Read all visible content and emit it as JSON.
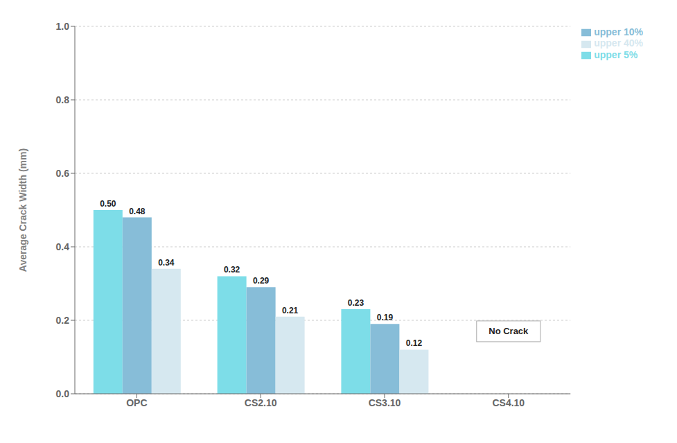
{
  "chart_data": {
    "type": "bar",
    "categories": [
      "OPC",
      "CS2.10",
      "CS3.10",
      "CS4.10"
    ],
    "series": [
      {
        "name": "upper 5%",
        "color": "#7ddde8",
        "values": [
          0.5,
          0.32,
          0.23,
          null
        ],
        "value_labels": [
          "0.50",
          "0.32",
          "0.23",
          null
        ]
      },
      {
        "name": "upper 10%",
        "color": "#87bdd8",
        "values": [
          0.48,
          0.29,
          0.19,
          null
        ],
        "value_labels": [
          "0.48",
          "0.29",
          "0.19",
          null
        ]
      },
      {
        "name": "upper 40%",
        "color": "#d6e8f0",
        "values": [
          0.34,
          0.21,
          0.12,
          null
        ],
        "value_labels": [
          "0.34",
          "0.21",
          "0.12",
          null
        ]
      }
    ],
    "y_label": "Average Crack Width (mm)",
    "ylim": [
      0.0,
      1.0
    ],
    "yticks": [
      {
        "value": 0,
        "label": "0.0"
      },
      0.2,
      0.4,
      0.6,
      0.8,
      {
        "value": 1,
        "label": "1.0"
      }
    ],
    "grid": true,
    "legend": "upper right",
    "data_labels": true,
    "annotations": [
      {
        "text": "No Crack",
        "x": "CS4.10",
        "y": 0.17
      }
    ]
  }
}
